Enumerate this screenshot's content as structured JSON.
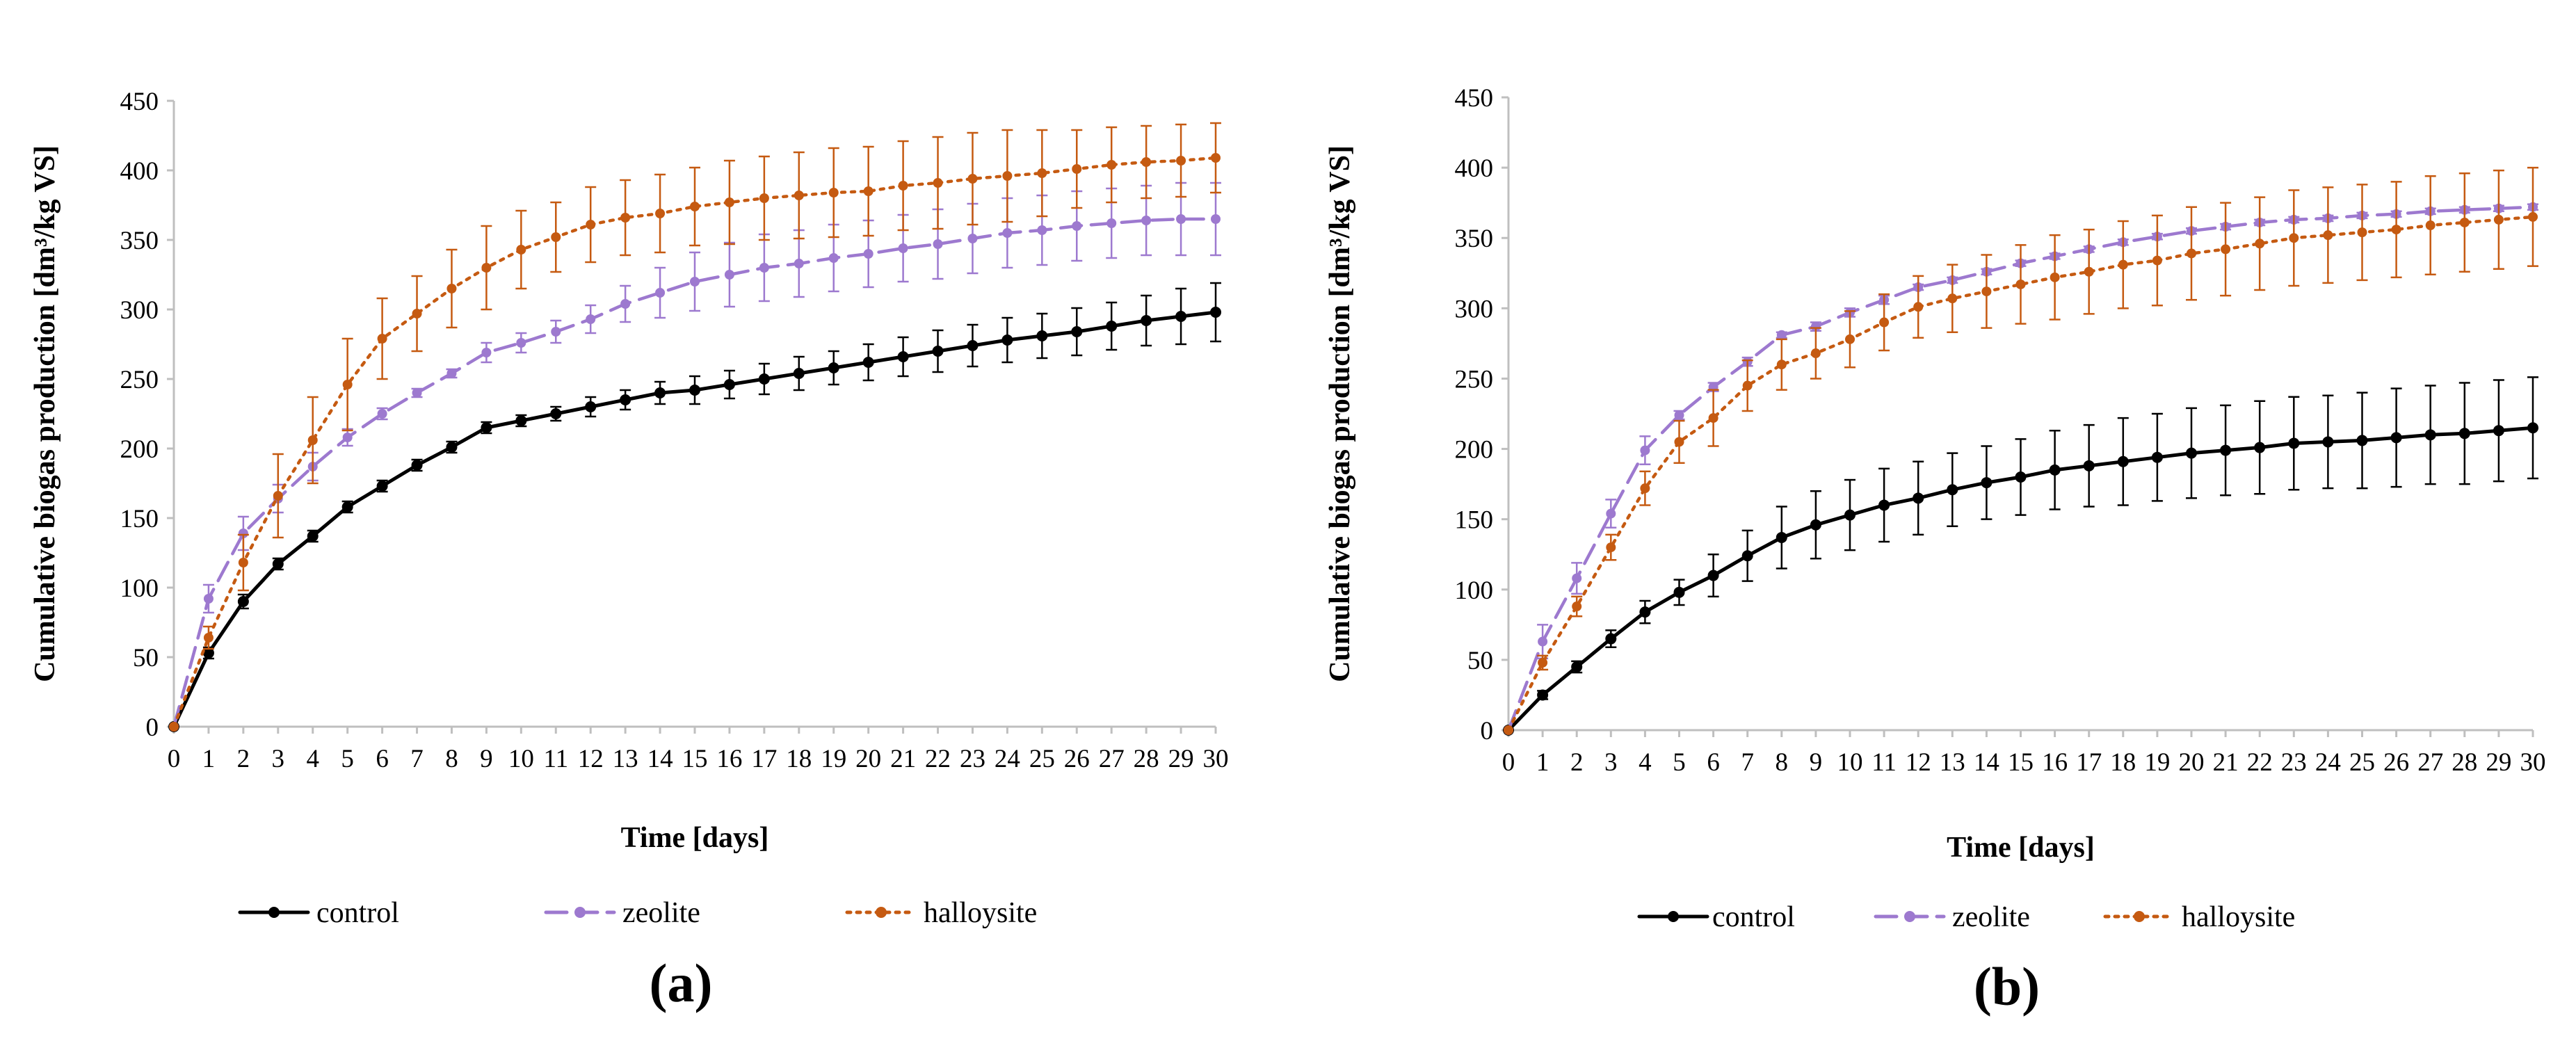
{
  "chart_data": [
    {
      "type": "line",
      "panel_label": "(a)",
      "xlabel": "Time [days]",
      "ylabel": "Cumulative biogas production [dm³/kg VS]",
      "ylim": [
        0,
        450
      ],
      "yticks": [
        0,
        50,
        100,
        150,
        200,
        250,
        300,
        350,
        400,
        450
      ],
      "xlim": [
        0,
        30
      ],
      "x": [
        0,
        1,
        2,
        3,
        4,
        5,
        6,
        7,
        8,
        9,
        10,
        11,
        12,
        13,
        14,
        15,
        16,
        17,
        18,
        19,
        20,
        21,
        22,
        23,
        24,
        25,
        26,
        27,
        28,
        29,
        30
      ],
      "grid": false,
      "legend_position": "bottom",
      "series": [
        {
          "name": "control",
          "color": "#000000",
          "style": "solid",
          "values": [
            0,
            53,
            90,
            117,
            137,
            158,
            173,
            188,
            201,
            215,
            220,
            225,
            230,
            235,
            240,
            242,
            246,
            250,
            254,
            258,
            262,
            266,
            270,
            274,
            278,
            281,
            284,
            288,
            292,
            295,
            298
          ],
          "errors": [
            0,
            4,
            5,
            4,
            4,
            4,
            4,
            4,
            4,
            4,
            4,
            5,
            7,
            7,
            8,
            10,
            10,
            11,
            12,
            12,
            13,
            14,
            15,
            15,
            16,
            16,
            17,
            17,
            18,
            20,
            21
          ]
        },
        {
          "name": "zeolite",
          "color": "#9D79CF",
          "style": "dashed",
          "values": [
            0,
            92,
            139,
            164,
            187,
            208,
            225,
            240,
            254,
            269,
            276,
            284,
            293,
            304,
            312,
            320,
            325,
            330,
            333,
            337,
            340,
            344,
            347,
            351,
            355,
            357,
            360,
            362,
            364,
            365,
            365
          ],
          "errors": [
            0,
            10,
            12,
            10,
            10,
            6,
            4,
            3,
            3,
            7,
            7,
            8,
            10,
            13,
            18,
            21,
            23,
            24,
            24,
            24,
            24,
            24,
            25,
            25,
            25,
            25,
            25,
            25,
            25,
            26,
            26
          ]
        },
        {
          "name": "halloysite",
          "color": "#C55A11",
          "style": "dotted",
          "values": [
            0,
            64,
            118,
            166,
            206,
            246,
            279,
            297,
            315,
            330,
            343,
            352,
            361,
            366,
            369,
            374,
            377,
            380,
            382,
            384,
            385,
            389,
            391,
            394,
            396,
            398,
            401,
            404,
            406,
            407,
            409
          ],
          "errors": [
            0,
            8,
            20,
            30,
            31,
            33,
            29,
            27,
            28,
            30,
            28,
            25,
            27,
            27,
            28,
            28,
            30,
            30,
            31,
            32,
            32,
            32,
            33,
            33,
            33,
            31,
            28,
            27,
            26,
            26,
            25
          ]
        }
      ]
    },
    {
      "type": "line",
      "panel_label": "(b)",
      "xlabel": "Time [days]",
      "ylabel": "Cumulative biogas production [dm³/kg VS]",
      "ylim": [
        0,
        450
      ],
      "yticks": [
        0,
        50,
        100,
        150,
        200,
        250,
        300,
        350,
        400,
        450
      ],
      "xlim": [
        0,
        30
      ],
      "x": [
        0,
        1,
        2,
        3,
        4,
        5,
        6,
        7,
        8,
        9,
        10,
        11,
        12,
        13,
        14,
        15,
        16,
        17,
        18,
        19,
        20,
        21,
        22,
        23,
        24,
        25,
        26,
        27,
        28,
        29,
        30
      ],
      "grid": false,
      "legend_position": "bottom",
      "series": [
        {
          "name": "control",
          "color": "#000000",
          "style": "solid",
          "values": [
            0,
            25,
            45,
            65,
            84,
            98,
            110,
            124,
            137,
            146,
            153,
            160,
            165,
            171,
            176,
            180,
            185,
            188,
            191,
            194,
            197,
            199,
            201,
            204,
            205,
            206,
            208,
            210,
            211,
            213,
            215
          ],
          "errors": [
            0,
            3,
            4,
            6,
            8,
            9,
            15,
            18,
            22,
            24,
            25,
            26,
            26,
            26,
            26,
            27,
            28,
            29,
            31,
            31,
            32,
            32,
            33,
            33,
            33,
            34,
            35,
            35,
            36,
            36,
            36
          ]
        },
        {
          "name": "zeolite",
          "color": "#9D79CF",
          "style": "dashed",
          "values": [
            0,
            63,
            108,
            154,
            199,
            224,
            244,
            262,
            281,
            287,
            297,
            306,
            315,
            320,
            326,
            332,
            337,
            342,
            347,
            351,
            355,
            358,
            361,
            363,
            364,
            366,
            367,
            369,
            370,
            371,
            372
          ],
          "errors": [
            0,
            12,
            11,
            10,
            10,
            3,
            3,
            3,
            2,
            3,
            3,
            3,
            2,
            2,
            2,
            2,
            2,
            2,
            2,
            2,
            2,
            2,
            2,
            2,
            2,
            2,
            2,
            2,
            2,
            2,
            2
          ]
        },
        {
          "name": "halloysite",
          "color": "#C55A11",
          "style": "dotted",
          "values": [
            0,
            48,
            88,
            130,
            172,
            205,
            222,
            245,
            260,
            268,
            278,
            290,
            301,
            307,
            312,
            317,
            322,
            326,
            331,
            334,
            339,
            342,
            346,
            350,
            352,
            354,
            356,
            359,
            361,
            363,
            365
          ],
          "errors": [
            0,
            5,
            7,
            9,
            12,
            15,
            20,
            18,
            18,
            18,
            20,
            20,
            22,
            24,
            26,
            28,
            30,
            30,
            31,
            32,
            33,
            33,
            33,
            34,
            34,
            34,
            34,
            35,
            35,
            35,
            35
          ]
        }
      ]
    }
  ]
}
